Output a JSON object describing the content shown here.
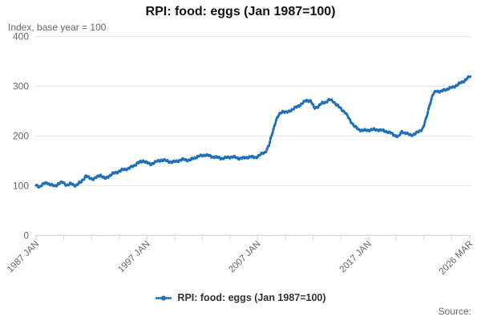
{
  "header": {
    "title": "RPI: food: eggs (Jan 1987=100)",
    "subtitle": "Index, base year = 100"
  },
  "legend": {
    "label": "RPI: food: eggs (Jan 1987=100)"
  },
  "source": {
    "label": "Source:"
  },
  "colors": {
    "line": "#1d70b8",
    "grid": "#e6e6e6",
    "axis": "#ccd6eb",
    "text_muted": "#666666",
    "title_text": "#111111",
    "legend_text": "#333333",
    "background": "#ffffff"
  },
  "chart_data": {
    "type": "line",
    "title": "RPI: food: eggs (Jan 1987=100)",
    "ylabel": "Index, base year = 100",
    "frequency": "monthly",
    "x_range_years": [
      1987.0,
      2026.17
    ],
    "ylim": [
      0,
      400
    ],
    "y_ticks": [
      0,
      100,
      200,
      300,
      400
    ],
    "x_minor_tick_interval_years": 2.5,
    "x_tick_labels": [
      {
        "year": 1987.0,
        "label": "1987 JAN"
      },
      {
        "year": 1997.0,
        "label": "1997 JAN"
      },
      {
        "year": 2007.0,
        "label": "2007 JAN"
      },
      {
        "year": 2017.0,
        "label": "2017 JAN"
      },
      {
        "year": 2026.17,
        "label": "2026 MAR"
      }
    ],
    "grid": true,
    "legend_position": "bottom",
    "series": [
      {
        "name": "RPI: food: eggs (Jan 1987=100)",
        "keypoints": [
          [
            1987,
            100
          ],
          [
            1987.3,
            98
          ],
          [
            1987.6,
            103
          ],
          [
            1988,
            106
          ],
          [
            1988.3,
            102
          ],
          [
            1988.7,
            99
          ],
          [
            1989,
            104
          ],
          [
            1989.4,
            107
          ],
          [
            1989.8,
            101
          ],
          [
            1990.2,
            104
          ],
          [
            1990.6,
            100
          ],
          [
            1991,
            107
          ],
          [
            1991.5,
            119
          ],
          [
            1991.8,
            116
          ],
          [
            1992.2,
            113
          ],
          [
            1992.8,
            122
          ],
          [
            1993.2,
            114
          ],
          [
            1993.9,
            124
          ],
          [
            1994.4,
            128
          ],
          [
            1994.8,
            132
          ],
          [
            1995.4,
            135
          ],
          [
            1995.8,
            140
          ],
          [
            1996.2,
            146
          ],
          [
            1996.7,
            150
          ],
          [
            1997.3,
            143
          ],
          [
            1997.8,
            148
          ],
          [
            1998.3,
            152
          ],
          [
            1998.8,
            150
          ],
          [
            1999.3,
            147
          ],
          [
            1999.8,
            150
          ],
          [
            2000.3,
            153
          ],
          [
            2000.8,
            151
          ],
          [
            2001.3,
            156
          ],
          [
            2001.8,
            160
          ],
          [
            2002.3,
            162
          ],
          [
            2002.8,
            159
          ],
          [
            2003.3,
            157
          ],
          [
            2003.8,
            155
          ],
          [
            2004.3,
            157
          ],
          [
            2004.8,
            158
          ],
          [
            2005.3,
            155
          ],
          [
            2005.8,
            156
          ],
          [
            2006.3,
            158
          ],
          [
            2006.8,
            157
          ],
          [
            2007.1,
            160
          ],
          [
            2007.4,
            165
          ],
          [
            2007.7,
            168
          ],
          [
            2008,
            180
          ],
          [
            2008.3,
            205
          ],
          [
            2008.6,
            228
          ],
          [
            2008.9,
            242
          ],
          [
            2009.2,
            250
          ],
          [
            2009.6,
            247
          ],
          [
            2010,
            252
          ],
          [
            2010.5,
            258
          ],
          [
            2011,
            265
          ],
          [
            2011.4,
            272
          ],
          [
            2011.8,
            270
          ],
          [
            2012.1,
            256
          ],
          [
            2012.5,
            260
          ],
          [
            2012.8,
            266
          ],
          [
            2013.1,
            268
          ],
          [
            2013.5,
            273
          ],
          [
            2013.8,
            270
          ],
          [
            2014.1,
            263
          ],
          [
            2014.5,
            255
          ],
          [
            2014.9,
            247
          ],
          [
            2015.3,
            233
          ],
          [
            2015.7,
            220
          ],
          [
            2016.1,
            213
          ],
          [
            2016.5,
            211
          ],
          [
            2017,
            212
          ],
          [
            2017.5,
            213
          ],
          [
            2018,
            212
          ],
          [
            2018.5,
            210
          ],
          [
            2019,
            206
          ],
          [
            2019.4,
            201
          ],
          [
            2019.7,
            198
          ],
          [
            2020,
            209
          ],
          [
            2020.4,
            205
          ],
          [
            2020.8,
            202
          ],
          [
            2021.2,
            204
          ],
          [
            2021.6,
            210
          ],
          [
            2021.9,
            215
          ],
          [
            2022.2,
            235
          ],
          [
            2022.5,
            262
          ],
          [
            2022.8,
            283
          ],
          [
            2023.1,
            291
          ],
          [
            2023.5,
            289
          ],
          [
            2023.9,
            293
          ],
          [
            2024.3,
            296
          ],
          [
            2024.7,
            299
          ],
          [
            2025.1,
            304
          ],
          [
            2025.5,
            309
          ],
          [
            2026,
            317
          ],
          [
            2026.17,
            320
          ]
        ]
      }
    ]
  }
}
